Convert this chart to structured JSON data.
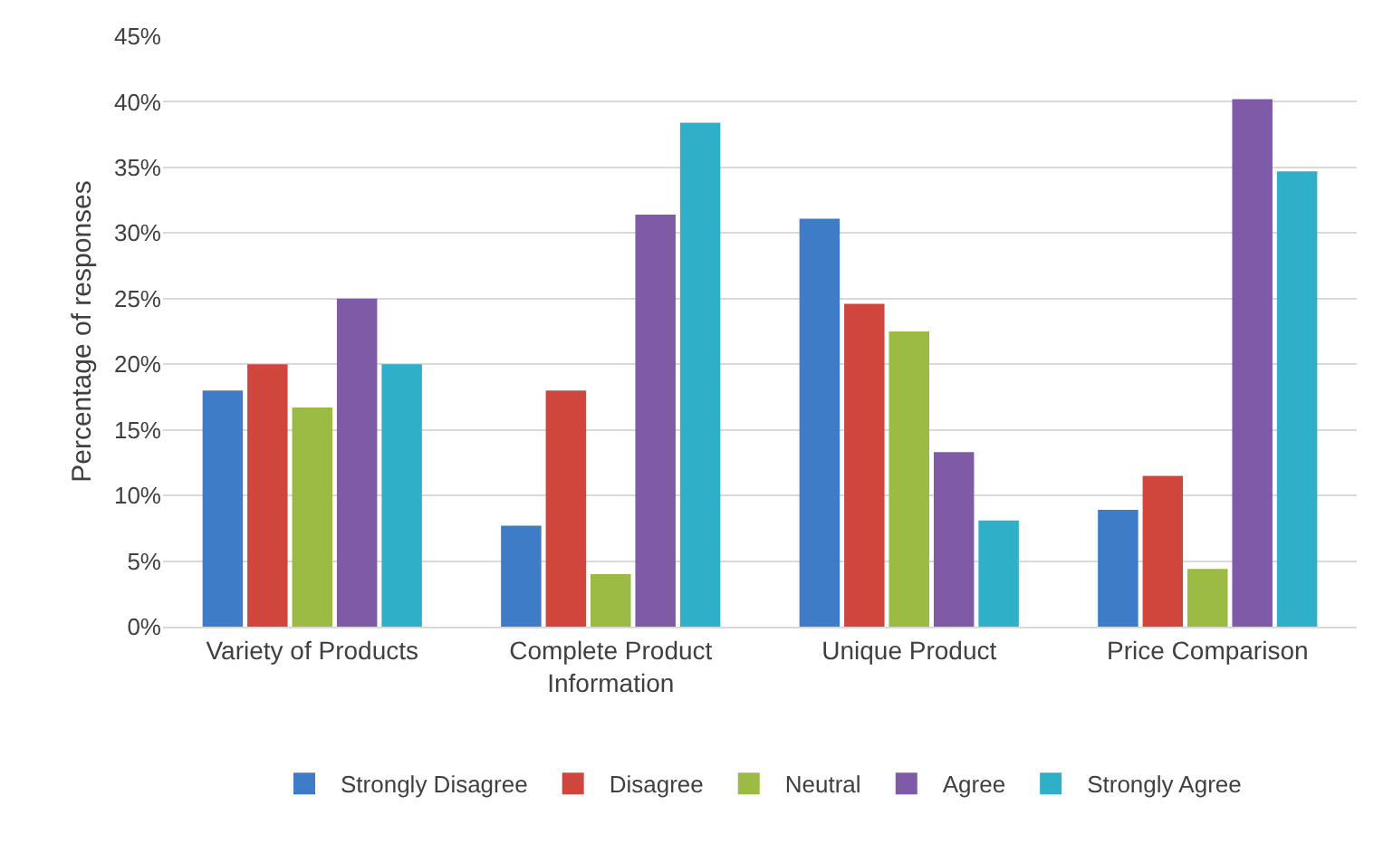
{
  "chart_data": {
    "type": "bar",
    "ylabel": "Percentage of responses",
    "categories": [
      "Variety of Products",
      "Complete Product Information",
      "Unique Product",
      "Price Comparison"
    ],
    "series": [
      {
        "name": "Strongly Disagree",
        "color": "#3f7cc8",
        "values": [
          18,
          7.7,
          31.1,
          8.9
        ]
      },
      {
        "name": "Disagree",
        "color": "#d0463c",
        "values": [
          20,
          18,
          24.6,
          11.5
        ]
      },
      {
        "name": "Neutral",
        "color": "#9bbb45",
        "values": [
          16.7,
          4,
          22.5,
          4.4
        ]
      },
      {
        "name": "Agree",
        "color": "#7f5aa6",
        "values": [
          25,
          31.4,
          13.3,
          40.2
        ]
      },
      {
        "name": "Strongly Agree",
        "color": "#2fafc8",
        "values": [
          20,
          38.4,
          8.1,
          34.7
        ]
      }
    ],
    "ylim": [
      0,
      45
    ],
    "yticks": [
      {
        "value": 0,
        "label": "0%"
      },
      {
        "value": 5,
        "label": "5%"
      },
      {
        "value": 10,
        "label": "10%"
      },
      {
        "value": 15,
        "label": "15%"
      },
      {
        "value": 20,
        "label": "20%"
      },
      {
        "value": 25,
        "label": "25%"
      },
      {
        "value": 30,
        "label": "30%"
      },
      {
        "value": 35,
        "label": "35%"
      },
      {
        "value": 40,
        "label": "40%"
      },
      {
        "value": 45,
        "label": "45%"
      }
    ],
    "grid": "y",
    "legend": "bottom"
  }
}
